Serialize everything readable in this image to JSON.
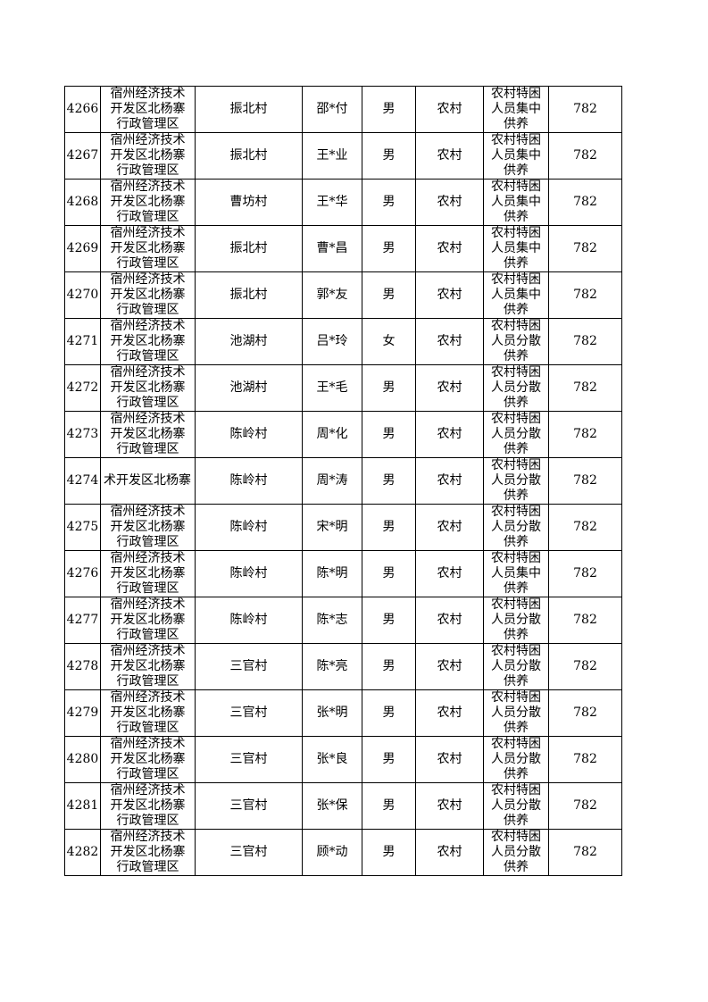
{
  "rows": [
    {
      "id": "4266",
      "district": "宿州经济技术开发区北杨寨行政管理区",
      "village": "振北村",
      "name": "邵*付",
      "sex": "男",
      "type": "农村",
      "category": "农村特困人员集中供养",
      "amount": "782"
    },
    {
      "id": "4267",
      "district": "宿州经济技术开发区北杨寨行政管理区",
      "village": "振北村",
      "name": "王*业",
      "sex": "男",
      "type": "农村",
      "category": "农村特困人员集中供养",
      "amount": "782"
    },
    {
      "id": "4268",
      "district": "宿州经济技术开发区北杨寨行政管理区",
      "village": "曹坊村",
      "name": "王*华",
      "sex": "男",
      "type": "农村",
      "category": "农村特困人员集中供养",
      "amount": "782"
    },
    {
      "id": "4269",
      "district": "宿州经济技术开发区北杨寨行政管理区",
      "village": "振北村",
      "name": "曹*昌",
      "sex": "男",
      "type": "农村",
      "category": "农村特困人员集中供养",
      "amount": "782"
    },
    {
      "id": "4270",
      "district": "宿州经济技术开发区北杨寨行政管理区",
      "village": "振北村",
      "name": "郭*友",
      "sex": "男",
      "type": "农村",
      "category": "农村特困人员集中供养",
      "amount": "782"
    },
    {
      "id": "4271",
      "district": "宿州经济技术开发区北杨寨行政管理区",
      "village": "池湖村",
      "name": "吕*玲",
      "sex": "女",
      "type": "农村",
      "category": "农村特困人员分散供养",
      "amount": "782"
    },
    {
      "id": "4272",
      "district": "宿州经济技术开发区北杨寨行政管理区",
      "village": "池湖村",
      "name": "王*毛",
      "sex": "男",
      "type": "农村",
      "category": "农村特困人员分散供养",
      "amount": "782"
    },
    {
      "id": "4273",
      "district": "宿州经济技术开发区北杨寨行政管理区",
      "village": "陈岭村",
      "name": "周*化",
      "sex": "男",
      "type": "农村",
      "category": "农村特困人员分散供养",
      "amount": "782"
    },
    {
      "id": "4274",
      "district": "术开发区北杨寨",
      "village": "陈岭村",
      "name": "周*涛",
      "sex": "男",
      "type": "农村",
      "category": "农村特困人员分散供养",
      "amount": "782",
      "oneline": true
    },
    {
      "id": "4275",
      "district": "宿州经济技术开发区北杨寨行政管理区",
      "village": "陈岭村",
      "name": "宋*明",
      "sex": "男",
      "type": "农村",
      "category": "农村特困人员分散供养",
      "amount": "782"
    },
    {
      "id": "4276",
      "district": "宿州经济技术开发区北杨寨行政管理区",
      "village": "陈岭村",
      "name": "陈*明",
      "sex": "男",
      "type": "农村",
      "category": "农村特困人员集中供养",
      "amount": "782"
    },
    {
      "id": "4277",
      "district": "宿州经济技术开发区北杨寨行政管理区",
      "village": "陈岭村",
      "name": "陈*志",
      "sex": "男",
      "type": "农村",
      "category": "农村特困人员分散供养",
      "amount": "782"
    },
    {
      "id": "4278",
      "district": "宿州经济技术开发区北杨寨行政管理区",
      "village": "三官村",
      "name": "陈*亮",
      "sex": "男",
      "type": "农村",
      "category": "农村特困人员分散供养",
      "amount": "782"
    },
    {
      "id": "4279",
      "district": "宿州经济技术开发区北杨寨行政管理区",
      "village": "三官村",
      "name": "张*明",
      "sex": "男",
      "type": "农村",
      "category": "农村特困人员分散供养",
      "amount": "782"
    },
    {
      "id": "4280",
      "district": "宿州经济技术开发区北杨寨行政管理区",
      "village": "三官村",
      "name": "张*良",
      "sex": "男",
      "type": "农村",
      "category": "农村特困人员分散供养",
      "amount": "782"
    },
    {
      "id": "4281",
      "district": "宿州经济技术开发区北杨寨行政管理区",
      "village": "三官村",
      "name": "张*保",
      "sex": "男",
      "type": "农村",
      "category": "农村特困人员分散供养",
      "amount": "782"
    },
    {
      "id": "4282",
      "district": "宿州经济技术开发区北杨寨行政管理区",
      "village": "三官村",
      "name": "顾*动",
      "sex": "男",
      "type": "农村",
      "category": "农村特困人员分散供养",
      "amount": "782"
    }
  ]
}
